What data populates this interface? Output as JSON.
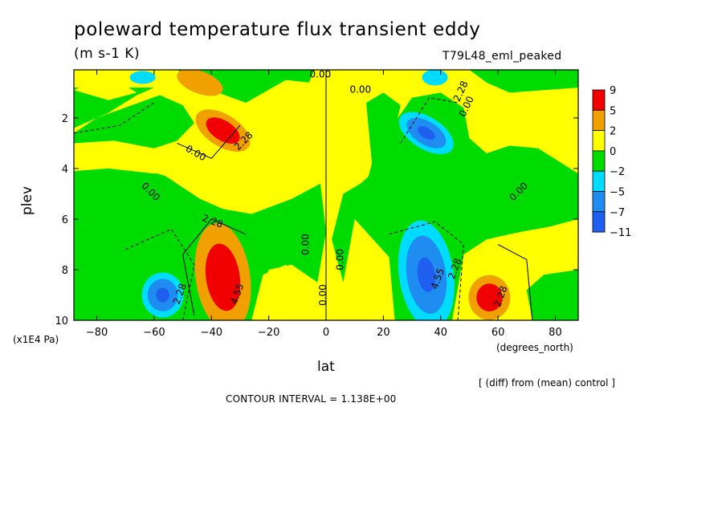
{
  "header": {
    "title": "poleward temperature flux transient eddy",
    "units": "(m s-1 K)",
    "run_name": "T79L48_eml_peaked"
  },
  "footer": {
    "diff_note": "[ (diff) from (mean) control ]",
    "contour_interval": "CONTOUR INTERVAL = 1.138E+00"
  },
  "colors": {
    "neg11": "#1e5ff0",
    "neg7": "#1e8cf0",
    "neg5": "#00dcff",
    "neg2": "#00dc00",
    "zero": "#ffff00",
    "pos2": "#f0a000",
    "pos5": "#f00000"
  },
  "chart_data": {
    "type": "heatmap",
    "title": "poleward temperature flux transient eddy",
    "subtitle": "(m s-1 K)",
    "xlabel": "lat",
    "x_units": "(degrees_north)",
    "ylabel": "plev",
    "y_units": "(x1E4 Pa)",
    "xlim": [
      -88,
      88
    ],
    "ylim": [
      10,
      0.1
    ],
    "x_ticks": [
      -80,
      -60,
      -40,
      -20,
      0,
      20,
      40,
      60,
      80
    ],
    "y_ticks": [
      2,
      4,
      6,
      8,
      10
    ],
    "colorbar": {
      "boundaries": [
        9,
        5,
        2,
        0,
        -2,
        -5,
        -7,
        -11
      ],
      "labels": [
        "9",
        "5",
        "2",
        "0",
        "−2",
        "−5",
        "−7",
        "−11"
      ]
    },
    "contour_labels": [
      "0.00",
      "2.28",
      "4.55"
    ],
    "contour_interval": 1.138,
    "features": [
      {
        "kind": "max",
        "lat": -36,
        "plev": 2.5,
        "value": 6
      },
      {
        "kind": "min",
        "lat": 35,
        "plev": 2.6,
        "value": -6
      },
      {
        "kind": "max",
        "lat": -36,
        "plev": 8.3,
        "value": 6
      },
      {
        "kind": "min",
        "lat": 35,
        "plev": 8.2,
        "value": -6
      },
      {
        "kind": "max",
        "lat": 57,
        "plev": 9.1,
        "value": 6
      },
      {
        "kind": "min",
        "lat": -57,
        "plev": 9.0,
        "value": -4.5
      }
    ]
  }
}
